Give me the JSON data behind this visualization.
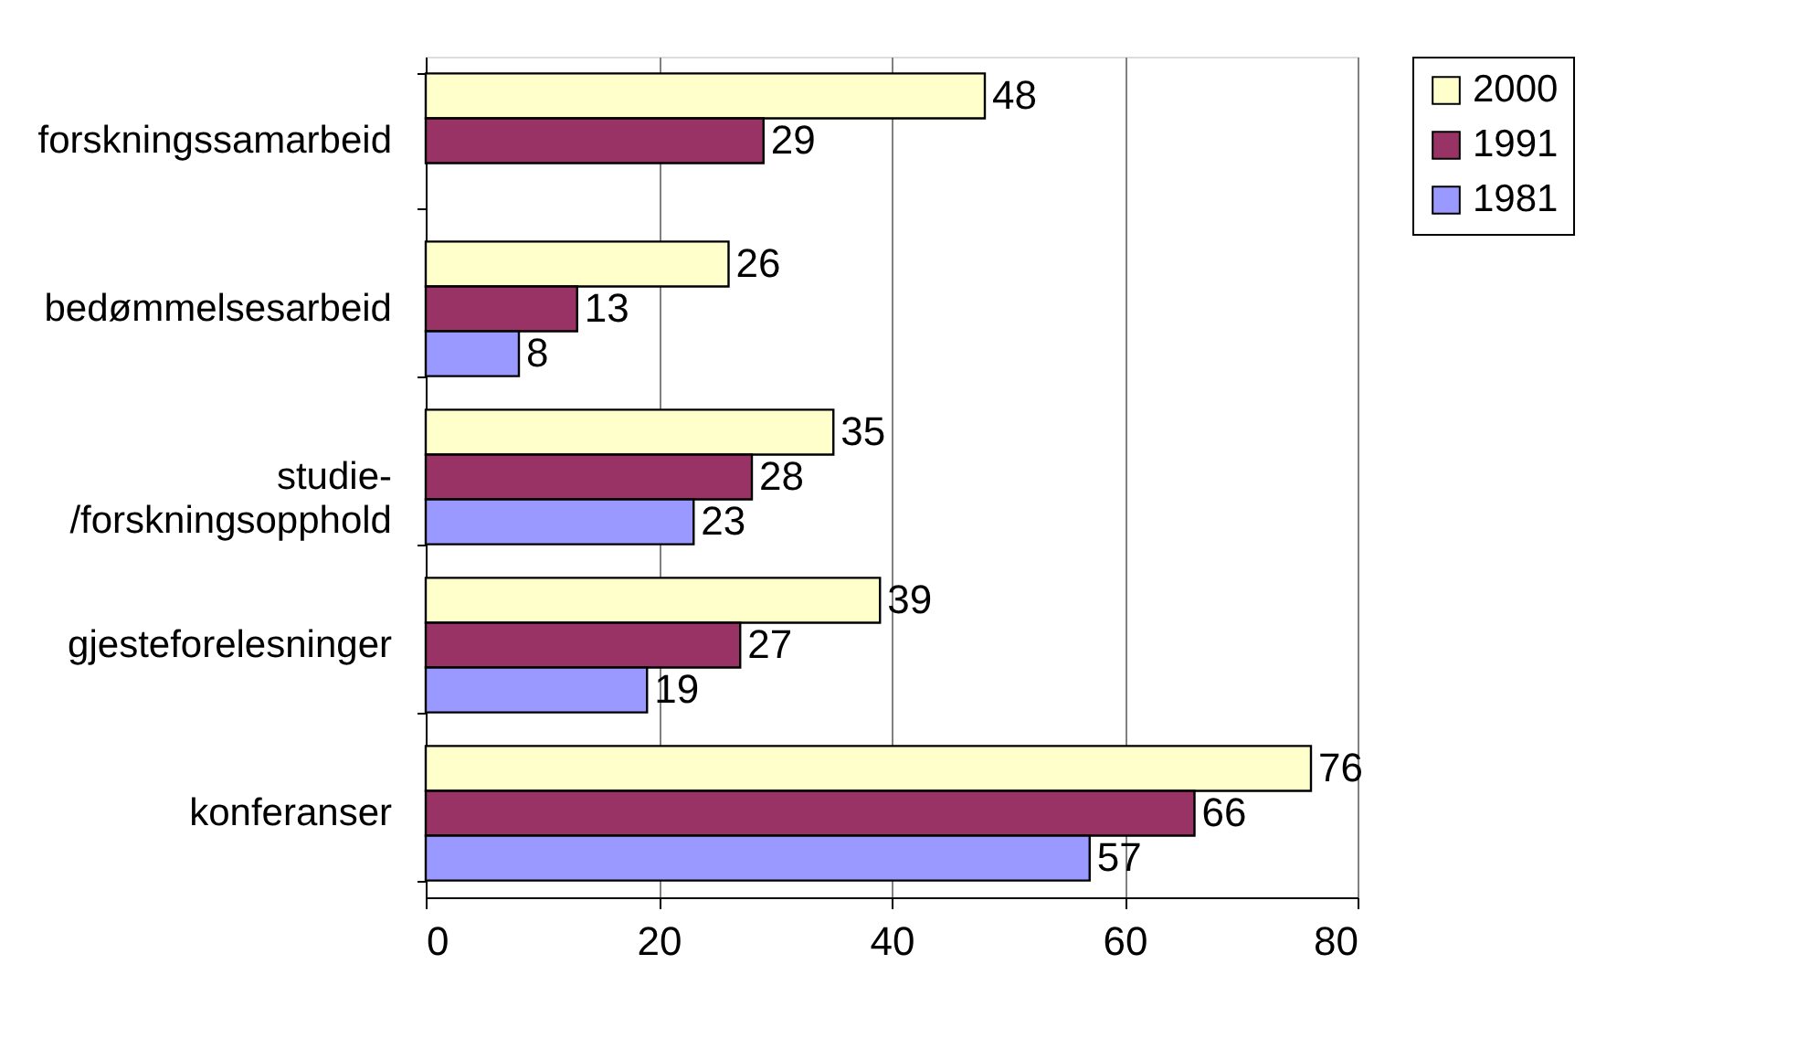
{
  "chart_data": {
    "type": "bar",
    "orientation": "horizontal",
    "categories": [
      "forskningssamarbeid",
      "bedømmelsesarbeid",
      "studie-\n/forskningsopphold",
      "gjesteforelesninger",
      "konferanser"
    ],
    "series": [
      {
        "name": "2000",
        "color": "#ffffcc",
        "values": [
          48,
          26,
          35,
          39,
          76
        ]
      },
      {
        "name": "1991",
        "color": "#993366",
        "values": [
          29,
          13,
          28,
          27,
          66
        ]
      },
      {
        "name": "1981",
        "color": "#9999ff",
        "values": [
          null,
          8,
          23,
          19,
          57
        ]
      }
    ],
    "xlim": [
      0,
      80
    ],
    "xticks": [
      0,
      20,
      40,
      60,
      80
    ],
    "grid": "x",
    "legend": "right",
    "data_labels": true
  }
}
